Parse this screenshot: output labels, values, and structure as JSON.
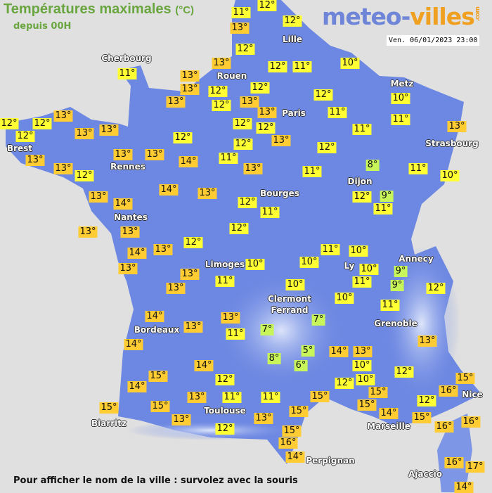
{
  "header": {
    "title": "Températures maximales",
    "unit": "(°C)",
    "subtitle": "depuis 00H",
    "logo_part1": "meteo-",
    "logo_part2": "villes",
    "logo_suffix": ".com",
    "datetime": "Ven. 06/01/2023 23:00"
  },
  "footer": "Pour afficher le nom de la ville : survolez avec la souris",
  "colors": {
    "background": "#e0e0e0",
    "land": "#6d88e2",
    "land_light": "#b8c8f0",
    "temp_cold": "#c8f55a",
    "temp_mild": "#ffff33",
    "temp_warm": "#ffcc33",
    "title": "#6aa640"
  },
  "cities": [
    "Cherbourg",
    "Lille",
    "Rouen",
    "Paris",
    "Metz",
    "Strasbourg",
    "Brest",
    "Rennes",
    "Nantes",
    "Dijon",
    "Bourges",
    "Limoges",
    "Ly",
    "Annecy",
    "Clermont",
    "Ferrand",
    "Grenoble",
    "Bordeaux",
    "Toulouse",
    "Biarritz",
    "Marseille",
    "Nice",
    "Perpignan",
    "Ajaccio"
  ],
  "temperatures": [
    11,
    12,
    13,
    12,
    12,
    13,
    12,
    11,
    10,
    11,
    13,
    13,
    12,
    12,
    13,
    13,
    12,
    12,
    13,
    10,
    11,
    11,
    12,
    12,
    13,
    11,
    13,
    13,
    12,
    12,
    12,
    13,
    13,
    12,
    12,
    12,
    13,
    13,
    13,
    14,
    11,
    13,
    8,
    11,
    11,
    10,
    13,
    12,
    14,
    13,
    13,
    14,
    12,
    9,
    11,
    12,
    11,
    13,
    13,
    12,
    12,
    13,
    14,
    13,
    11,
    10,
    10,
    10,
    10,
    9,
    9,
    11,
    13,
    13,
    11,
    10,
    12,
    10,
    11,
    13,
    7,
    7,
    11,
    14,
    13,
    14,
    13,
    14,
    13,
    5,
    8,
    6,
    10,
    12,
    14,
    15,
    12,
    10,
    12,
    15,
    16,
    14,
    15,
    11,
    11,
    13,
    15,
    15,
    12,
    14,
    15,
    15,
    15,
    13,
    13,
    15,
    16,
    16,
    12,
    15,
    16,
    14,
    16,
    17,
    14
  ]
}
